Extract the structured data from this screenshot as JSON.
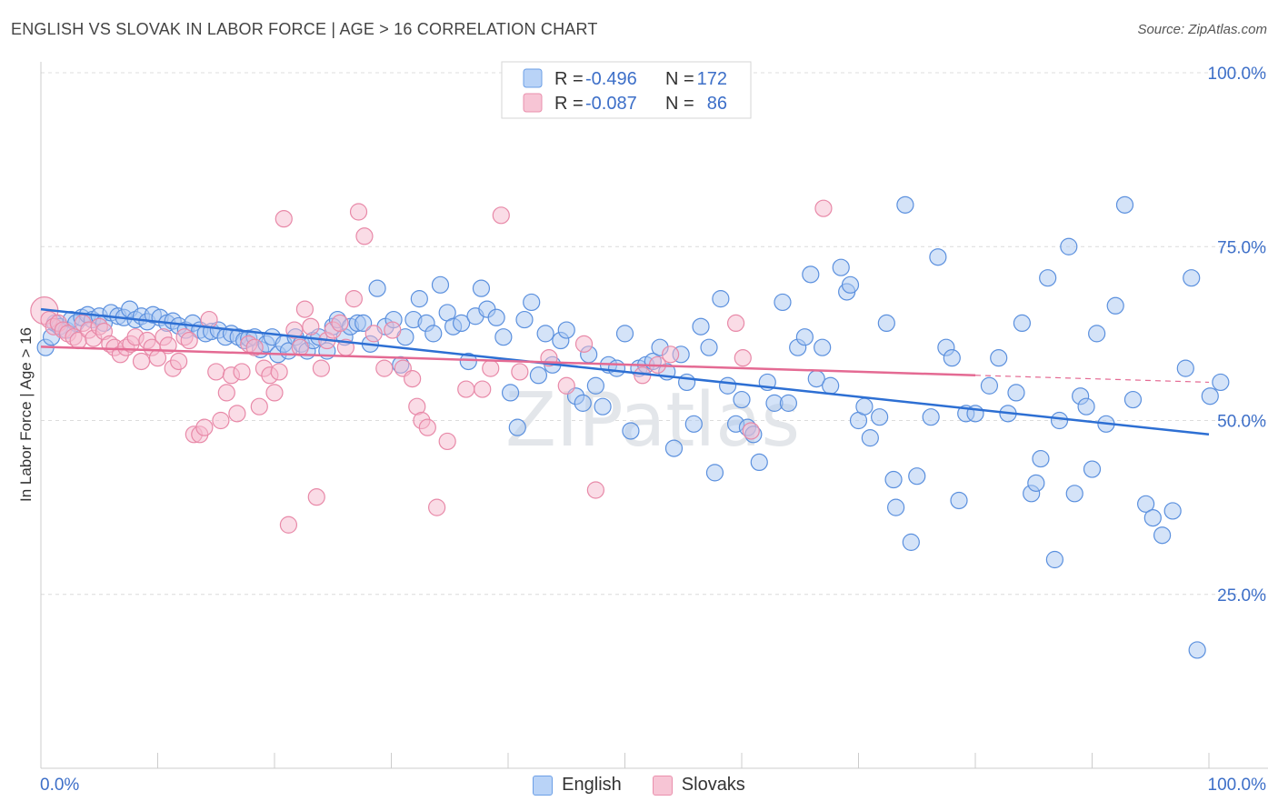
{
  "title": "ENGLISH VS SLOVAK IN LABOR FORCE | AGE > 16 CORRELATION CHART",
  "source": "Source: ZipAtlas.com",
  "watermark": "ZIPatlas",
  "colors": {
    "blue_fill": "#a9c8f2",
    "blue_stroke": "#5b90de",
    "blue_line": "#2d6fd3",
    "pink_fill": "#f5bacd",
    "pink_stroke": "#e889a8",
    "pink_line": "#e46a93",
    "tick_label": "#3d6fc8"
  },
  "legend_top": [
    {
      "r_label": "R =",
      "r_value": "-0.496",
      "n_label": "N =",
      "n_value": "172"
    },
    {
      "r_label": "R =",
      "r_value": "-0.087",
      "n_label": "N =",
      "n_value": "86"
    }
  ],
  "chart_data": {
    "type": "scatter",
    "ylabel": "In Labor Force | Age > 16",
    "xlabel": "",
    "xlim": [
      0,
      100
    ],
    "ylim": [
      0,
      100
    ],
    "x_tick_labels": [
      "0.0%",
      "100.0%"
    ],
    "y_tick_labels": [
      "25.0%",
      "50.0%",
      "75.0%",
      "100.0%"
    ],
    "y_ticks": [
      25,
      50,
      75,
      100
    ],
    "grid": true,
    "legend_position": "top-center",
    "series": [
      {
        "name": "English",
        "trend": {
          "x": [
            0,
            100
          ],
          "y": [
            66,
            48
          ]
        },
        "points": [
          [
            0.4,
            60.5
          ],
          [
            0.9,
            62
          ],
          [
            1.2,
            64
          ],
          [
            1.6,
            63.5
          ],
          [
            2.2,
            63
          ],
          [
            2.6,
            64.5
          ],
          [
            3.0,
            64
          ],
          [
            3.5,
            64.8
          ],
          [
            4.0,
            65.2
          ],
          [
            4.4,
            64.5
          ],
          [
            5.0,
            65
          ],
          [
            5.4,
            64
          ],
          [
            6.0,
            65.5
          ],
          [
            6.6,
            65
          ],
          [
            7.1,
            64.8
          ],
          [
            7.6,
            66
          ],
          [
            8.1,
            64.5
          ],
          [
            8.6,
            65
          ],
          [
            9.1,
            64.2
          ],
          [
            9.6,
            65.2
          ],
          [
            10.2,
            64.8
          ],
          [
            10.8,
            64
          ],
          [
            11.3,
            64.3
          ],
          [
            11.8,
            63.6
          ],
          [
            12.4,
            63
          ],
          [
            13.0,
            64
          ],
          [
            13.6,
            63
          ],
          [
            14.1,
            62.5
          ],
          [
            14.6,
            62.8
          ],
          [
            15.2,
            63
          ],
          [
            15.8,
            62
          ],
          [
            16.3,
            62.5
          ],
          [
            16.9,
            62
          ],
          [
            17.4,
            61.5
          ],
          [
            17.8,
            61.8
          ],
          [
            18.3,
            62
          ],
          [
            18.8,
            60.2
          ],
          [
            19.3,
            61
          ],
          [
            19.8,
            62
          ],
          [
            20.3,
            59.5
          ],
          [
            20.8,
            61
          ],
          [
            21.2,
            60
          ],
          [
            21.8,
            62
          ],
          [
            22.3,
            61
          ],
          [
            22.8,
            60
          ],
          [
            23.3,
            61.5
          ],
          [
            23.8,
            62
          ],
          [
            24.5,
            60
          ],
          [
            25.0,
            63.5
          ],
          [
            25.4,
            64.5
          ],
          [
            26.0,
            62
          ],
          [
            26.5,
            63.5
          ],
          [
            27.1,
            64
          ],
          [
            27.6,
            64
          ],
          [
            28.2,
            61
          ],
          [
            28.8,
            69
          ],
          [
            29.5,
            63.5
          ],
          [
            30.2,
            64.5
          ],
          [
            30.8,
            58
          ],
          [
            31.2,
            62
          ],
          [
            31.9,
            64.5
          ],
          [
            32.4,
            67.5
          ],
          [
            33.0,
            64
          ],
          [
            33.6,
            62.5
          ],
          [
            34.2,
            69.5
          ],
          [
            34.8,
            65.5
          ],
          [
            35.3,
            63.5
          ],
          [
            36.0,
            64
          ],
          [
            36.6,
            58.5
          ],
          [
            37.2,
            65
          ],
          [
            37.7,
            69
          ],
          [
            38.2,
            66
          ],
          [
            39.0,
            64.8
          ],
          [
            39.6,
            62
          ],
          [
            40.2,
            54
          ],
          [
            40.8,
            49
          ],
          [
            41.4,
            64.5
          ],
          [
            42.0,
            67
          ],
          [
            42.6,
            56.5
          ],
          [
            43.2,
            62.5
          ],
          [
            43.8,
            58
          ],
          [
            44.5,
            61.5
          ],
          [
            45.0,
            63
          ],
          [
            45.8,
            53.5
          ],
          [
            46.4,
            52.5
          ],
          [
            46.9,
            59.5
          ],
          [
            47.5,
            55
          ],
          [
            48.1,
            52
          ],
          [
            48.6,
            58
          ],
          [
            49.3,
            57.5
          ],
          [
            50.0,
            62.5
          ],
          [
            50.5,
            48.5
          ],
          [
            51.2,
            57.5
          ],
          [
            51.8,
            58
          ],
          [
            52.4,
            58.5
          ],
          [
            53.0,
            60.5
          ],
          [
            53.6,
            57
          ],
          [
            54.2,
            46
          ],
          [
            54.8,
            59.5
          ],
          [
            55.3,
            55.5
          ],
          [
            55.9,
            49.5
          ],
          [
            56.5,
            63.5
          ],
          [
            57.2,
            60.5
          ],
          [
            57.7,
            42.5
          ],
          [
            58.2,
            67.5
          ],
          [
            58.8,
            55
          ],
          [
            59.5,
            49.5
          ],
          [
            60.0,
            53
          ],
          [
            60.5,
            49
          ],
          [
            61.0,
            48
          ],
          [
            61.5,
            44
          ],
          [
            62.2,
            55.5
          ],
          [
            62.8,
            52.5
          ],
          [
            63.5,
            67
          ],
          [
            64.0,
            52.5
          ],
          [
            64.8,
            60.5
          ],
          [
            65.4,
            62
          ],
          [
            65.9,
            71
          ],
          [
            66.4,
            56
          ],
          [
            66.9,
            60.5
          ],
          [
            67.6,
            55
          ],
          [
            68.5,
            72
          ],
          [
            69.0,
            68.5
          ],
          [
            69.3,
            69.5
          ],
          [
            70.0,
            50
          ],
          [
            70.5,
            52
          ],
          [
            71.0,
            47.5
          ],
          [
            71.8,
            50.5
          ],
          [
            72.4,
            64
          ],
          [
            73.0,
            41.5
          ],
          [
            73.2,
            37.5
          ],
          [
            74.0,
            81
          ],
          [
            74.5,
            32.5
          ],
          [
            75.0,
            42
          ],
          [
            76.2,
            50.5
          ],
          [
            76.8,
            73.5
          ],
          [
            77.5,
            60.5
          ],
          [
            78.0,
            59
          ],
          [
            78.6,
            38.5
          ],
          [
            79.2,
            51
          ],
          [
            80.0,
            51
          ],
          [
            81.2,
            55
          ],
          [
            82.0,
            59
          ],
          [
            82.8,
            51
          ],
          [
            83.5,
            54
          ],
          [
            84.0,
            64
          ],
          [
            84.8,
            39.5
          ],
          [
            85.2,
            41
          ],
          [
            85.6,
            44.5
          ],
          [
            86.2,
            70.5
          ],
          [
            86.8,
            30
          ],
          [
            87.2,
            50
          ],
          [
            88.0,
            75
          ],
          [
            88.5,
            39.5
          ],
          [
            89.0,
            53.5
          ],
          [
            89.5,
            52
          ],
          [
            90.0,
            43
          ],
          [
            90.4,
            62.5
          ],
          [
            91.2,
            49.5
          ],
          [
            92.0,
            66.5
          ],
          [
            92.8,
            81
          ],
          [
            93.5,
            53
          ],
          [
            94.6,
            38
          ],
          [
            95.2,
            36
          ],
          [
            96.0,
            33.5
          ],
          [
            96.9,
            37
          ],
          [
            98.0,
            57.5
          ],
          [
            98.5,
            70.5
          ],
          [
            99.0,
            17
          ],
          [
            100.1,
            53.5
          ],
          [
            101.0,
            55.5
          ]
        ]
      },
      {
        "name": "Slovaks",
        "trend": {
          "x": [
            0,
            80
          ],
          "y": [
            60.6,
            56.5
          ]
        },
        "trend_dashed": {
          "x": [
            80,
            100
          ],
          "y": [
            56.5,
            55.5
          ]
        },
        "points": [
          [
            0.3,
            65.8
          ],
          [
            0.7,
            64.5
          ],
          [
            1.1,
            63.5
          ],
          [
            1.5,
            64
          ],
          [
            1.9,
            63
          ],
          [
            2.3,
            62.5
          ],
          [
            2.8,
            62
          ],
          [
            3.2,
            61.5
          ],
          [
            3.6,
            64
          ],
          [
            4.1,
            63
          ],
          [
            4.5,
            61.8
          ],
          [
            5.0,
            63.5
          ],
          [
            5.4,
            62.8
          ],
          [
            5.9,
            61
          ],
          [
            6.3,
            60.5
          ],
          [
            6.8,
            59.5
          ],
          [
            7.3,
            60.5
          ],
          [
            7.7,
            61
          ],
          [
            8.1,
            62
          ],
          [
            8.6,
            58.5
          ],
          [
            9.1,
            61.5
          ],
          [
            9.5,
            60.5
          ],
          [
            10.0,
            59
          ],
          [
            10.5,
            62
          ],
          [
            10.9,
            60.8
          ],
          [
            11.3,
            57.5
          ],
          [
            11.8,
            58.5
          ],
          [
            12.3,
            62
          ],
          [
            12.7,
            61.5
          ],
          [
            13.1,
            48
          ],
          [
            13.6,
            48
          ],
          [
            14.0,
            49
          ],
          [
            14.4,
            64.5
          ],
          [
            15.0,
            57
          ],
          [
            15.4,
            50
          ],
          [
            15.9,
            54
          ],
          [
            16.3,
            56.5
          ],
          [
            16.8,
            51
          ],
          [
            17.2,
            57
          ],
          [
            17.8,
            61
          ],
          [
            18.3,
            60.5
          ],
          [
            18.7,
            52
          ],
          [
            19.1,
            57.5
          ],
          [
            19.6,
            56.5
          ],
          [
            20.0,
            54
          ],
          [
            20.4,
            57
          ],
          [
            20.8,
            79
          ],
          [
            21.2,
            35
          ],
          [
            21.7,
            63
          ],
          [
            22.2,
            60.5
          ],
          [
            22.6,
            66
          ],
          [
            23.1,
            63.5
          ],
          [
            23.6,
            39
          ],
          [
            24.0,
            57.5
          ],
          [
            24.5,
            61.5
          ],
          [
            25.0,
            63
          ],
          [
            25.6,
            64
          ],
          [
            26.1,
            60.5
          ],
          [
            26.8,
            67.5
          ],
          [
            27.2,
            80
          ],
          [
            27.7,
            76.5
          ],
          [
            28.5,
            62.5
          ],
          [
            29.4,
            57.5
          ],
          [
            30.1,
            63
          ],
          [
            31.0,
            57.5
          ],
          [
            31.8,
            56
          ],
          [
            32.2,
            52
          ],
          [
            32.6,
            50
          ],
          [
            33.1,
            49
          ],
          [
            33.9,
            37.5
          ],
          [
            34.8,
            47
          ],
          [
            36.4,
            54.5
          ],
          [
            37.8,
            54.5
          ],
          [
            38.5,
            57.5
          ],
          [
            39.4,
            79.5
          ],
          [
            41.0,
            57
          ],
          [
            43.5,
            59
          ],
          [
            45.0,
            55
          ],
          [
            46.5,
            61
          ],
          [
            47.5,
            40
          ],
          [
            51.5,
            56.5
          ],
          [
            52.8,
            58
          ],
          [
            53.9,
            59.5
          ],
          [
            59.5,
            64
          ],
          [
            60.1,
            59
          ],
          [
            60.8,
            48.5
          ],
          [
            67.0,
            80.5
          ]
        ]
      }
    ]
  }
}
